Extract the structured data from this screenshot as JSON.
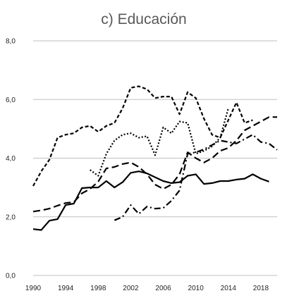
{
  "chart_data": {
    "type": "line",
    "title": "c) Educación",
    "xlabel": "",
    "ylabel": "",
    "xlim": [
      1990,
      2020
    ],
    "ylim": [
      0,
      8
    ],
    "yticks": [
      0,
      2,
      4,
      6,
      8
    ],
    "ytick_labels": [
      "0,0",
      "2,0",
      "4,0",
      "6,0",
      "8,0"
    ],
    "xticks": [
      1990,
      1994,
      1998,
      2002,
      2006,
      2010,
      2014,
      2018
    ],
    "xtick_labels": [
      "1990",
      "1994",
      "1998",
      "2002",
      "2006",
      "2010",
      "2014",
      "2018"
    ],
    "grid": "horizontal",
    "legend": "none",
    "series": [
      {
        "style": "solid",
        "x": [
          1990,
          1991,
          1992,
          1993,
          1994,
          1995,
          1996,
          1997,
          1998,
          1999,
          2000,
          2001,
          2002,
          2003,
          2004,
          2005,
          2006,
          2007,
          2008,
          2009,
          2010,
          2011,
          2012,
          2013,
          2014,
          2015,
          2016,
          2017,
          2018,
          2019
        ],
        "values": [
          1.58,
          1.55,
          1.87,
          1.92,
          2.4,
          2.45,
          2.98,
          3.0,
          3.0,
          3.22,
          3.0,
          3.18,
          3.5,
          3.55,
          3.48,
          3.35,
          3.22,
          3.15,
          3.18,
          3.4,
          3.45,
          3.12,
          3.15,
          3.22,
          3.22,
          3.27,
          3.3,
          3.45,
          3.3,
          3.2
        ]
      },
      {
        "style": "dashed",
        "x": [
          1990,
          1991,
          1992,
          1993,
          1994,
          1995,
          1996,
          1997,
          1998,
          1999,
          2000,
          2001,
          2002,
          2003,
          2004,
          2005,
          2006,
          2007,
          2008,
          2009,
          2010,
          2011,
          2012,
          2013,
          2014,
          2015,
          2016,
          2017,
          2018,
          2019,
          2020
        ],
        "values": [
          2.18,
          2.22,
          2.28,
          2.38,
          2.47,
          2.5,
          2.8,
          2.95,
          3.2,
          3.65,
          3.7,
          3.8,
          3.85,
          3.7,
          3.45,
          3.1,
          2.95,
          3.1,
          3.45,
          4.2,
          4.0,
          3.85,
          4.0,
          4.25,
          4.35,
          4.6,
          4.95,
          5.1,
          5.25,
          5.4,
          5.4
        ]
      },
      {
        "style": "short-dash",
        "x": [
          1990,
          1991,
          1992,
          1993,
          1994,
          1995,
          1996,
          1997,
          1998,
          1999,
          2000,
          2001,
          2002,
          2003,
          2004,
          2005,
          2006,
          2007,
          2008,
          2009,
          2010,
          2011,
          2012,
          2013,
          2014,
          2015,
          2016,
          2017
        ],
        "values": [
          3.05,
          3.55,
          3.95,
          4.7,
          4.8,
          4.85,
          5.05,
          5.1,
          4.9,
          5.1,
          5.2,
          5.7,
          6.4,
          6.45,
          6.35,
          6.05,
          6.1,
          6.1,
          5.5,
          6.25,
          6.05,
          5.35,
          4.8,
          4.7,
          5.3,
          5.9,
          5.2,
          5.3
        ]
      },
      {
        "style": "dotted",
        "x": [
          1997,
          1998,
          1999,
          2000,
          2001,
          2002,
          2003,
          2004,
          2005,
          2006,
          2007,
          2008,
          2009,
          2010,
          2011,
          2012,
          2013,
          2014
        ],
        "values": [
          3.6,
          3.4,
          4.15,
          4.6,
          4.8,
          4.85,
          4.7,
          4.75,
          4.1,
          5.05,
          4.85,
          5.25,
          5.2,
          4.15,
          4.25,
          4.4,
          4.7,
          5.7
        ]
      },
      {
        "style": "dash-dot",
        "x": [
          2000,
          2001,
          2002,
          2003,
          2004,
          2005,
          2006,
          2007,
          2008,
          2009,
          2010,
          2011,
          2012,
          2013,
          2014,
          2015,
          2016,
          2017,
          2018,
          2019,
          2020
        ],
        "values": [
          1.88,
          2.0,
          2.4,
          2.1,
          2.35,
          2.28,
          2.3,
          2.55,
          2.9,
          4.15,
          4.2,
          4.3,
          4.45,
          4.6,
          4.55,
          4.5,
          4.65,
          4.8,
          4.55,
          4.5,
          4.28
        ]
      }
    ]
  }
}
